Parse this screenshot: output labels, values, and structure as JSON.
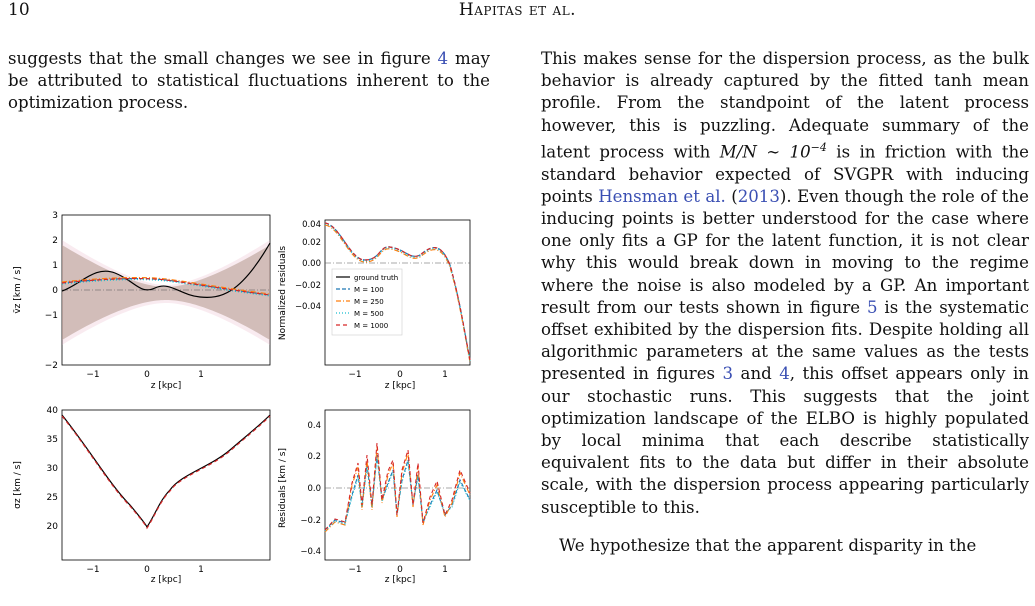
{
  "header": {
    "page_number": "10",
    "running_title": "Hapitas et al."
  },
  "left_column": {
    "paragraph_1a": "suggests that the small changes we see in figure ",
    "paragraph_1_ref": "4",
    "paragraph_1b": " may be attributed to statistical fluctuations inherent to the optimization process."
  },
  "right_column": {
    "p1_a": "This makes sense for the dispersion process, as the bulk behavior is already captured by the fitted tanh mean profile. From the standpoint of the latent process however, this is puzzling. Adequate summary of the latent process with ",
    "p1_math": "M/N ∼ 10",
    "p1_math_exp": "−4",
    "p1_b": " is in friction with the standard behavior expected of SVGPR with inducing points ",
    "p1_ref_cite": "Hensman et al.",
    "p1_ref_open": " (",
    "p1_ref_year": "2013",
    "p1_ref_close": ").",
    "p1_c": "  Even though the role of the inducing points is better understood for the case where one only fits a GP for the latent function, it is not clear why this would break down in moving to the regime where the noise is also modeled by a GP. An important result from our tests shown in figure ",
    "p1_ref_fig5": "5",
    "p1_d": " is the systematic offset exhibited by the dispersion fits. Despite holding all algorithmic parameters at the same values as the tests presented in figures ",
    "p1_ref_fig3": "3",
    "p1_and": " and ",
    "p1_ref_fig4": "4",
    "p1_e": ", this offset appears only in our stochastic runs. This suggests that the joint optimization landscape of the ELBO is highly populated by local minima that each describe statistically equivalent fits to the data but differ in their absolute scale, with the dispersion process appearing particularly susceptible to this.",
    "p2": "We hypothesize that the apparent disparity in the"
  },
  "figure": {
    "colors": {
      "ground_truth": "#000000",
      "m100": "#1f77b4",
      "m250": "#ff7f0e",
      "m500": "#17becf",
      "m1000": "#d62728",
      "band": "#a08f7a"
    },
    "panel_a": {
      "ylabel": "v̄z [km / s]",
      "xlabel": "z [kpc]",
      "yticks": [
        "−2",
        "−1",
        "0",
        "1",
        "2",
        "3"
      ],
      "xticks": [
        "−1",
        "0",
        "1"
      ]
    },
    "panel_b": {
      "ylabel": "Normalized residuals",
      "xlabel": "z [kpc]",
      "yticks": [
        "−0.04",
        "−0.02",
        "0.00",
        "0.02",
        "0.04"
      ],
      "xticks": [
        "−1",
        "0",
        "1"
      ],
      "legend": [
        "ground truth",
        "M = 100",
        "M = 250",
        "M = 500",
        "M = 1000"
      ]
    },
    "panel_c": {
      "ylabel": "σz [km / s]",
      "xlabel": "z [kpc]",
      "yticks": [
        "20",
        "25",
        "30",
        "35",
        "40"
      ],
      "xticks": [
        "−1",
        "0",
        "1"
      ]
    },
    "panel_d": {
      "ylabel": "Residuals [km / s]",
      "xlabel": "z [kpc]",
      "yticks": [
        "−0.4",
        "−0.2",
        "0.0",
        "0.2",
        "0.4"
      ],
      "xticks": [
        "−1",
        "0",
        "1"
      ]
    }
  }
}
